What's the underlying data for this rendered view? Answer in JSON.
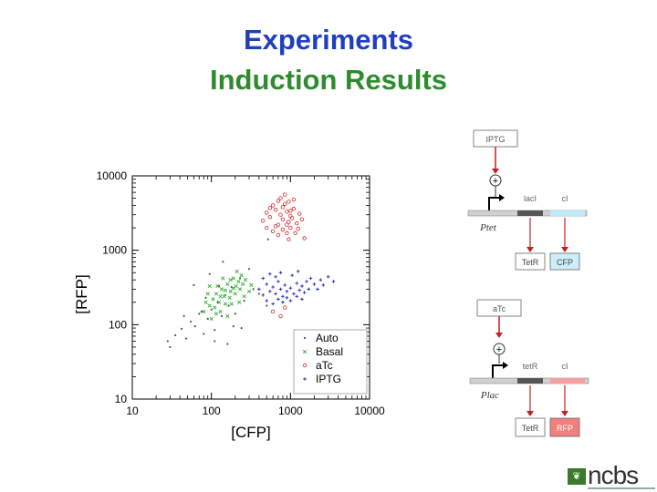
{
  "slide": {
    "title_line1": "Experiments",
    "title_line2": "Induction Results",
    "title1_color": "#1f3fbf",
    "title2_color": "#2e8b2e"
  },
  "chart_data": {
    "type": "scatter",
    "title": "",
    "xlabel": "[CFP]",
    "ylabel": "[RFP]",
    "xscale": "log",
    "yscale": "log",
    "xlim": [
      10,
      10000
    ],
    "ylim": [
      10,
      10000
    ],
    "xticks": [
      "10",
      "100",
      "1000",
      "10000"
    ],
    "yticks": [
      "10",
      "100",
      "1000",
      "10000"
    ],
    "grid": false,
    "legend_position": "lower-right",
    "series": [
      {
        "name": "Auto",
        "marker": "dot",
        "color": "#555555",
        "points": [
          [
            28,
            60
          ],
          [
            35,
            72
          ],
          [
            42,
            88
          ],
          [
            48,
            65
          ],
          [
            55,
            110
          ],
          [
            62,
            95
          ],
          [
            70,
            140
          ],
          [
            80,
            75
          ],
          [
            90,
            120
          ],
          [
            100,
            160
          ],
          [
            110,
            85
          ],
          [
            120,
            200
          ],
          [
            135,
            130
          ],
          [
            150,
            250
          ],
          [
            165,
            180
          ],
          [
            180,
            320
          ],
          [
            200,
            140
          ],
          [
            230,
            420
          ],
          [
            260,
            210
          ],
          [
            300,
            560
          ],
          [
            340,
            300
          ],
          [
            60,
            340
          ],
          [
            95,
            480
          ],
          [
            140,
            700
          ],
          [
            75,
            150
          ],
          [
            45,
            130
          ],
          [
            160,
            55
          ],
          [
            110,
            60
          ],
          [
            240,
            90
          ],
          [
            400,
            260
          ],
          [
            500,
            180
          ],
          [
            30,
            50
          ],
          [
            85,
            230
          ],
          [
            190,
            95
          ],
          [
            125,
            330
          ],
          [
            520,
            1400
          ]
        ]
      },
      {
        "name": "Basal",
        "marker": "x",
        "color": "#2fae2f",
        "points": [
          [
            80,
            150
          ],
          [
            95,
            180
          ],
          [
            105,
            220
          ],
          [
            115,
            260
          ],
          [
            125,
            200
          ],
          [
            135,
            300
          ],
          [
            145,
            240
          ],
          [
            160,
            350
          ],
          [
            175,
            280
          ],
          [
            190,
            420
          ],
          [
            205,
            330
          ],
          [
            220,
            380
          ],
          [
            240,
            460
          ],
          [
            100,
            120
          ],
          [
            110,
            170
          ],
          [
            130,
            150
          ],
          [
            150,
            190
          ],
          [
            170,
            230
          ],
          [
            200,
            260
          ],
          [
            230,
            300
          ],
          [
            250,
            350
          ],
          [
            270,
            400
          ],
          [
            90,
            260
          ],
          [
            120,
            330
          ],
          [
            140,
            420
          ],
          [
            180,
            190
          ],
          [
            210,
            520
          ],
          [
            160,
            130
          ],
          [
            85,
            200
          ],
          [
            300,
            280
          ],
          [
            130,
            240
          ],
          [
            190,
            310
          ],
          [
            150,
            290
          ],
          [
            115,
            140
          ],
          [
            260,
            240
          ],
          [
            225,
            200
          ],
          [
            175,
            400
          ],
          [
            95,
            330
          ],
          [
            320,
            340
          ]
        ]
      },
      {
        "name": "aTc",
        "marker": "circle",
        "color": "#d42a2a",
        "points": [
          [
            450,
            2500
          ],
          [
            500,
            3200
          ],
          [
            550,
            2800
          ],
          [
            600,
            4000
          ],
          [
            650,
            3500
          ],
          [
            700,
            2200
          ],
          [
            750,
            3000
          ],
          [
            800,
            2600
          ],
          [
            850,
            4200
          ],
          [
            900,
            3300
          ],
          [
            950,
            2400
          ],
          [
            1000,
            2900
          ],
          [
            1100,
            3600
          ],
          [
            1200,
            2300
          ],
          [
            1300,
            3100
          ],
          [
            600,
            1800
          ],
          [
            700,
            1600
          ],
          [
            800,
            1900
          ],
          [
            900,
            1700
          ],
          [
            1000,
            2000
          ],
          [
            550,
            3700
          ],
          [
            750,
            5000
          ],
          [
            850,
            5600
          ],
          [
            950,
            4500
          ],
          [
            1050,
            2700
          ],
          [
            1150,
            1700
          ],
          [
            1400,
            2600
          ],
          [
            650,
            2100
          ],
          [
            800,
            3800
          ],
          [
            1000,
            3400
          ],
          [
            900,
            2200
          ],
          [
            700,
            4600
          ],
          [
            1100,
            4800
          ],
          [
            500,
            2000
          ],
          [
            1250,
            1950
          ],
          [
            950,
            1400
          ],
          [
            600,
            150
          ],
          [
            750,
            130
          ],
          [
            850,
            170
          ],
          [
            1500,
            1450
          ]
        ]
      },
      {
        "name": "IPTG",
        "marker": "plus",
        "color": "#1f2fb5",
        "points": [
          [
            400,
            300
          ],
          [
            450,
            250
          ],
          [
            500,
            350
          ],
          [
            550,
            280
          ],
          [
            600,
            320
          ],
          [
            650,
            260
          ],
          [
            700,
            380
          ],
          [
            750,
            300
          ],
          [
            800,
            240
          ],
          [
            850,
            340
          ],
          [
            900,
            280
          ],
          [
            1000,
            310
          ],
          [
            1100,
            260
          ],
          [
            1200,
            360
          ],
          [
            1300,
            290
          ],
          [
            1400,
            330
          ],
          [
            1500,
            270
          ],
          [
            1600,
            380
          ],
          [
            1700,
            300
          ],
          [
            1800,
            420
          ],
          [
            2000,
            350
          ],
          [
            2200,
            300
          ],
          [
            2400,
            400
          ],
          [
            2600,
            340
          ],
          [
            3000,
            440
          ],
          [
            3500,
            380
          ],
          [
            500,
            210
          ],
          [
            600,
            190
          ],
          [
            700,
            220
          ],
          [
            800,
            200
          ],
          [
            900,
            230
          ],
          [
            1000,
            210
          ],
          [
            1200,
            240
          ],
          [
            1400,
            220
          ],
          [
            450,
            420
          ],
          [
            550,
            480
          ],
          [
            650,
            440
          ],
          [
            750,
            500
          ],
          [
            1050,
            460
          ],
          [
            1250,
            520
          ]
        ]
      }
    ]
  },
  "diagram_top": {
    "inducer_label": "IPTG",
    "plus_symbol": "+",
    "gene1_label": "lacI",
    "gene2_label": "cI",
    "promoter_label": "Ptet",
    "product1_label": "TetR",
    "product2_label": "CFP",
    "product2_color": "#cdeefa"
  },
  "diagram_bottom": {
    "inducer_label": "aTc",
    "plus_symbol": "+",
    "gene1_label": "tetR",
    "gene2_label": "cI",
    "promoter_label": "Plac",
    "product1_label": "TetR",
    "product2_label": "RFP",
    "product2_color": "#f08080"
  },
  "logo": {
    "text": "ncbs",
    "color": "#3a7a2c"
  }
}
